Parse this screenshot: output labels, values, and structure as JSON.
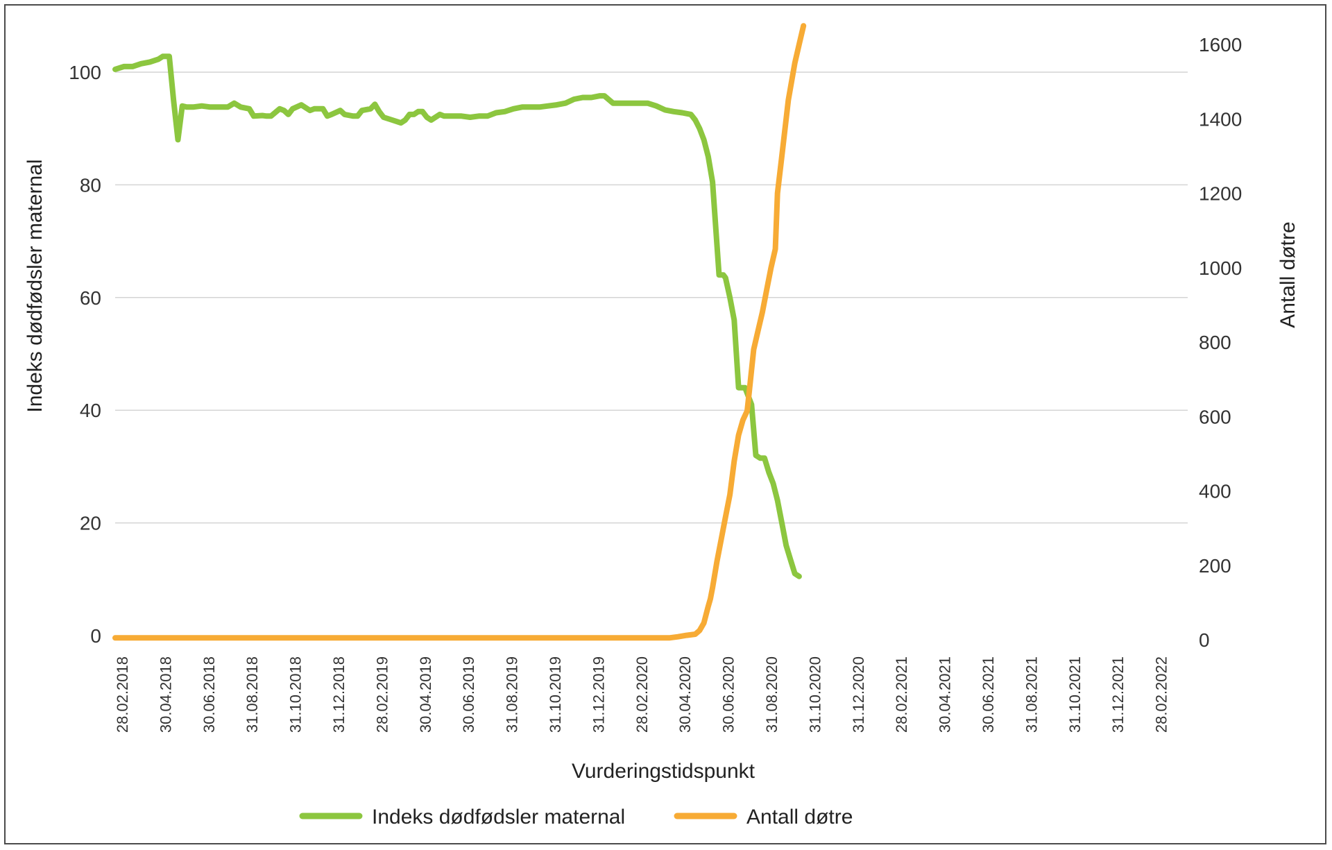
{
  "chart_data": {
    "type": "line",
    "xlabel": "Vurderingstidspunkt",
    "ylabel_left": "Indeks dødfødsler maternal",
    "ylabel_right": "Antall døtre",
    "ylim_left": [
      0,
      110
    ],
    "ylim_right": [
      0,
      1650
    ],
    "yticks_left": [
      "0",
      "20",
      "40",
      "60",
      "80",
      "100"
    ],
    "yticks_right": [
      "0",
      "200",
      "400",
      "600",
      "800",
      "1000",
      "1200",
      "1400",
      "1600"
    ],
    "x_tick_labels": [
      "28.02.2018",
      "30.04.2018",
      "30.06.2018",
      "31.08.2018",
      "31.10.2018",
      "31.12.2018",
      "28.02.2019",
      "30.04.2019",
      "30.06.2019",
      "31.08.2019",
      "31.10.2019",
      "31.12.2019",
      "28.02.2020",
      "30.04.2020",
      "30.06.2020",
      "31.08.2020",
      "31.10.2020",
      "31.12.2020",
      "28.02.2021",
      "30.04.2021",
      "30.06.2021",
      "31.08.2021",
      "31.10.2021",
      "31.12.2021",
      "28.02.2022"
    ],
    "grid": true,
    "legend_position": "bottom",
    "series": [
      {
        "name": "Indeks dødfødsler maternal",
        "axis": "left",
        "color": "#8cc63f",
        "points": [
          [
            0,
            100.5
          ],
          [
            0.2,
            101
          ],
          [
            0.4,
            101
          ],
          [
            0.6,
            101.5
          ],
          [
            0.8,
            101.8
          ],
          [
            1,
            102.3
          ],
          [
            1.1,
            102.8
          ],
          [
            1.25,
            102.8
          ],
          [
            1.35,
            95
          ],
          [
            1.45,
            88
          ],
          [
            1.55,
            94
          ],
          [
            1.65,
            93.8
          ],
          [
            1.8,
            93.8
          ],
          [
            2,
            94
          ],
          [
            2.2,
            93.8
          ],
          [
            2.4,
            93.8
          ],
          [
            2.6,
            93.8
          ],
          [
            2.75,
            94.5
          ],
          [
            2.9,
            93.8
          ],
          [
            3.1,
            93.5
          ],
          [
            3.2,
            92.2
          ],
          [
            3.4,
            92.3
          ],
          [
            3.5,
            92.2
          ],
          [
            3.6,
            92.2
          ],
          [
            3.8,
            93.5
          ],
          [
            3.9,
            93.2
          ],
          [
            4,
            92.5
          ],
          [
            4.1,
            93.5
          ],
          [
            4.3,
            94.2
          ],
          [
            4.5,
            93.2
          ],
          [
            4.6,
            93.5
          ],
          [
            4.8,
            93.5
          ],
          [
            4.9,
            92.2
          ],
          [
            5,
            92.5
          ],
          [
            5.2,
            93.2
          ],
          [
            5.3,
            92.5
          ],
          [
            5.5,
            92.2
          ],
          [
            5.6,
            92.2
          ],
          [
            5.7,
            93.2
          ],
          [
            5.9,
            93.5
          ],
          [
            6,
            94.3
          ],
          [
            6.1,
            93
          ],
          [
            6.2,
            92
          ],
          [
            6.4,
            91.5
          ],
          [
            6.6,
            91
          ],
          [
            6.7,
            91.5
          ],
          [
            6.8,
            92.5
          ],
          [
            6.9,
            92.5
          ],
          [
            7,
            93
          ],
          [
            7.1,
            93
          ],
          [
            7.2,
            92
          ],
          [
            7.3,
            91.5
          ],
          [
            7.5,
            92.5
          ],
          [
            7.6,
            92.2
          ],
          [
            7.8,
            92.2
          ],
          [
            8,
            92.2
          ],
          [
            8.2,
            92
          ],
          [
            8.4,
            92.2
          ],
          [
            8.6,
            92.2
          ],
          [
            8.8,
            92.8
          ],
          [
            9,
            93
          ],
          [
            9.2,
            93.5
          ],
          [
            9.4,
            93.8
          ],
          [
            9.6,
            93.8
          ],
          [
            9.8,
            93.8
          ],
          [
            10,
            94
          ],
          [
            10.2,
            94.2
          ],
          [
            10.4,
            94.5
          ],
          [
            10.6,
            95.2
          ],
          [
            10.8,
            95.5
          ],
          [
            11,
            95.5
          ],
          [
            11.2,
            95.8
          ],
          [
            11.3,
            95.8
          ],
          [
            11.5,
            94.5
          ],
          [
            11.7,
            94.5
          ],
          [
            11.9,
            94.5
          ],
          [
            12.1,
            94.5
          ],
          [
            12.3,
            94.5
          ],
          [
            12.5,
            94
          ],
          [
            12.7,
            93.3
          ],
          [
            12.9,
            93
          ],
          [
            13.1,
            92.8
          ],
          [
            13.3,
            92.5
          ],
          [
            13.4,
            91.5
          ],
          [
            13.5,
            90
          ],
          [
            13.6,
            88
          ],
          [
            13.7,
            85
          ],
          [
            13.8,
            80.5
          ],
          [
            13.95,
            64
          ],
          [
            14.05,
            64
          ],
          [
            14.1,
            63.5
          ],
          [
            14.2,
            60
          ],
          [
            14.3,
            56
          ],
          [
            14.4,
            44
          ],
          [
            14.55,
            44
          ],
          [
            14.7,
            41
          ],
          [
            14.8,
            32
          ],
          [
            14.9,
            31.5
          ],
          [
            15,
            31.5
          ],
          [
            15.1,
            29
          ],
          [
            15.2,
            27
          ],
          [
            15.3,
            24
          ],
          [
            15.4,
            20
          ],
          [
            15.5,
            16
          ],
          [
            15.6,
            13.5
          ],
          [
            15.7,
            11
          ],
          [
            15.8,
            10.5
          ]
        ]
      },
      {
        "name": "Antall døtre",
        "axis": "right",
        "color": "#f7ab35",
        "points": [
          [
            0,
            5
          ],
          [
            0.5,
            5
          ],
          [
            1,
            5
          ],
          [
            2,
            5
          ],
          [
            3,
            5
          ],
          [
            4,
            5
          ],
          [
            5,
            5
          ],
          [
            6,
            5
          ],
          [
            7,
            5
          ],
          [
            8,
            5
          ],
          [
            9,
            5
          ],
          [
            10,
            5
          ],
          [
            11,
            5
          ],
          [
            12,
            5
          ],
          [
            12.6,
            5
          ],
          [
            12.8,
            5
          ],
          [
            13,
            8
          ],
          [
            13.2,
            12
          ],
          [
            13.4,
            15
          ],
          [
            13.5,
            25
          ],
          [
            13.6,
            45
          ],
          [
            13.7,
            90
          ],
          [
            13.75,
            110
          ],
          [
            13.8,
            140
          ],
          [
            13.9,
            210
          ],
          [
            14,
            270
          ],
          [
            14.1,
            330
          ],
          [
            14.2,
            390
          ],
          [
            14.3,
            480
          ],
          [
            14.4,
            550
          ],
          [
            14.5,
            590
          ],
          [
            14.6,
            615
          ],
          [
            14.65,
            670
          ],
          [
            14.75,
            780
          ],
          [
            14.85,
            830
          ],
          [
            14.95,
            880
          ],
          [
            15.05,
            940
          ],
          [
            15.15,
            1000
          ],
          [
            15.25,
            1050
          ],
          [
            15.3,
            1200
          ],
          [
            15.4,
            1300
          ],
          [
            15.5,
            1400
          ],
          [
            15.55,
            1450
          ],
          [
            15.7,
            1550
          ],
          [
            15.8,
            1600
          ],
          [
            15.9,
            1650
          ]
        ]
      }
    ]
  }
}
